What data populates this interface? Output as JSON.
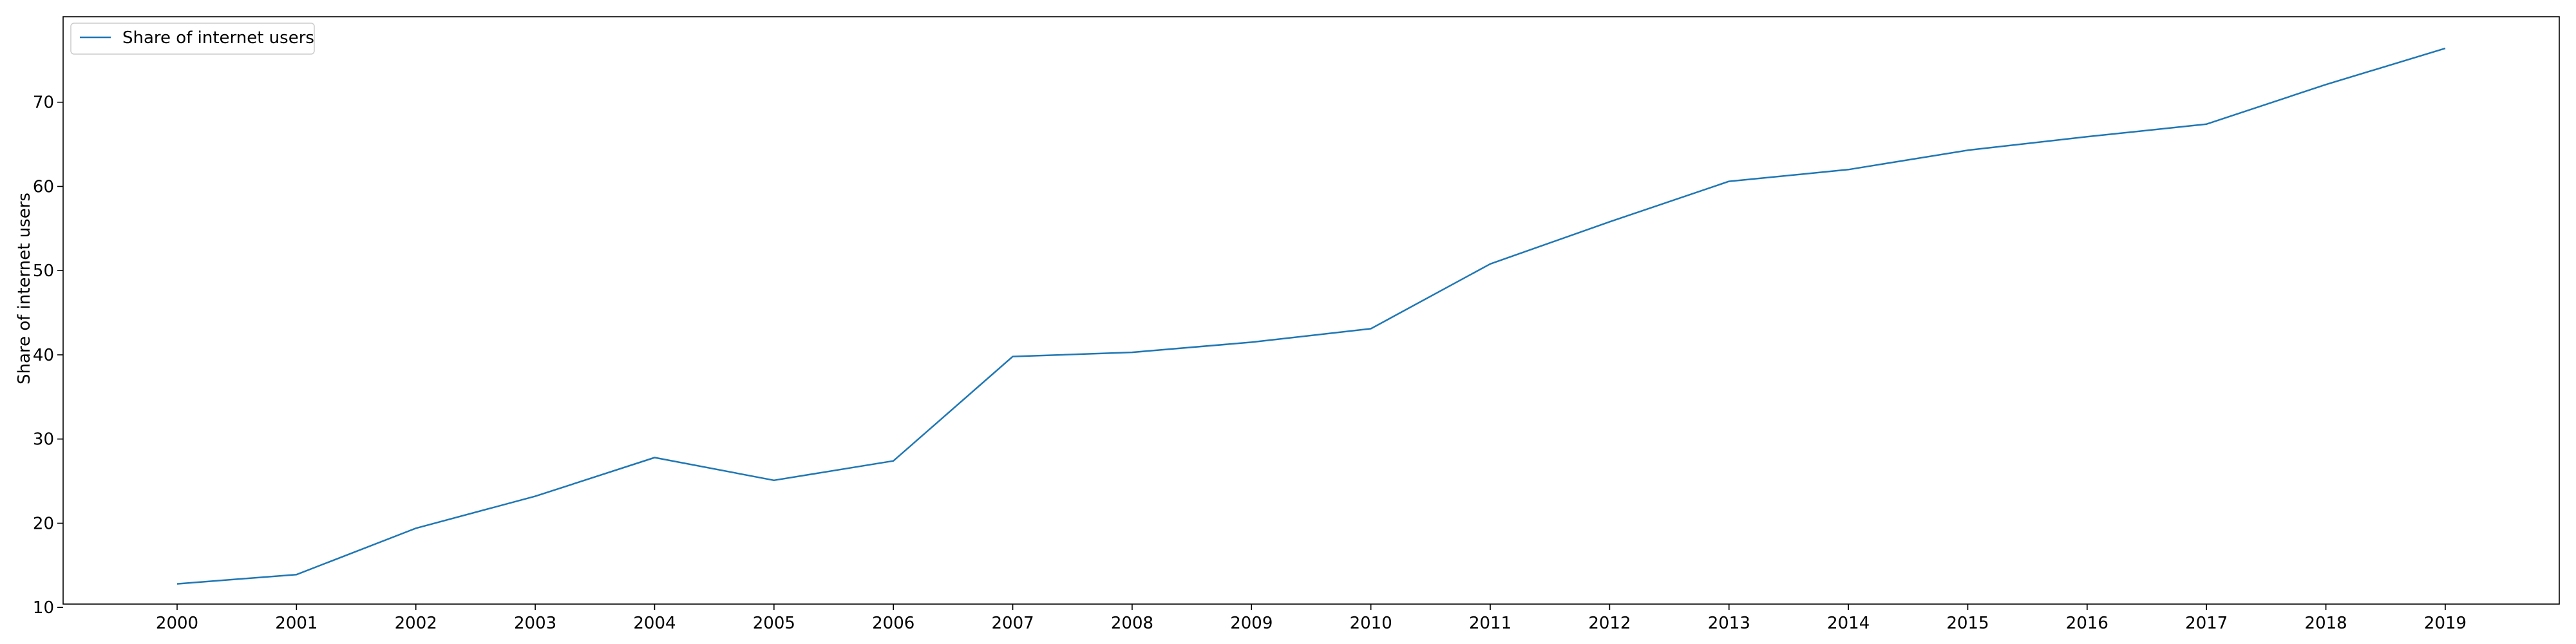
{
  "chart_data": {
    "type": "line",
    "x": [
      "2000",
      "2001",
      "2002",
      "2003",
      "2004",
      "2005",
      "2006",
      "2007",
      "2008",
      "2009",
      "2010",
      "2011",
      "2012",
      "2013",
      "2014",
      "2015",
      "2016",
      "2017",
      "2018",
      "2019"
    ],
    "series": [
      {
        "name": "Share of internet users",
        "values": [
          12.8,
          13.9,
          19.4,
          23.2,
          27.8,
          25.1,
          27.4,
          39.8,
          40.3,
          41.5,
          43.1,
          50.8,
          55.8,
          60.6,
          62.0,
          64.3,
          65.9,
          67.4,
          72.1,
          76.4
        ],
        "color": "#1f77b4"
      }
    ],
    "title": "",
    "xlabel": "",
    "ylabel": "Share of internet users",
    "ylim": [
      10,
      80
    ],
    "yticks": [
      10,
      20,
      30,
      40,
      50,
      60,
      70
    ],
    "grid": false,
    "legend_position": "top-left"
  }
}
